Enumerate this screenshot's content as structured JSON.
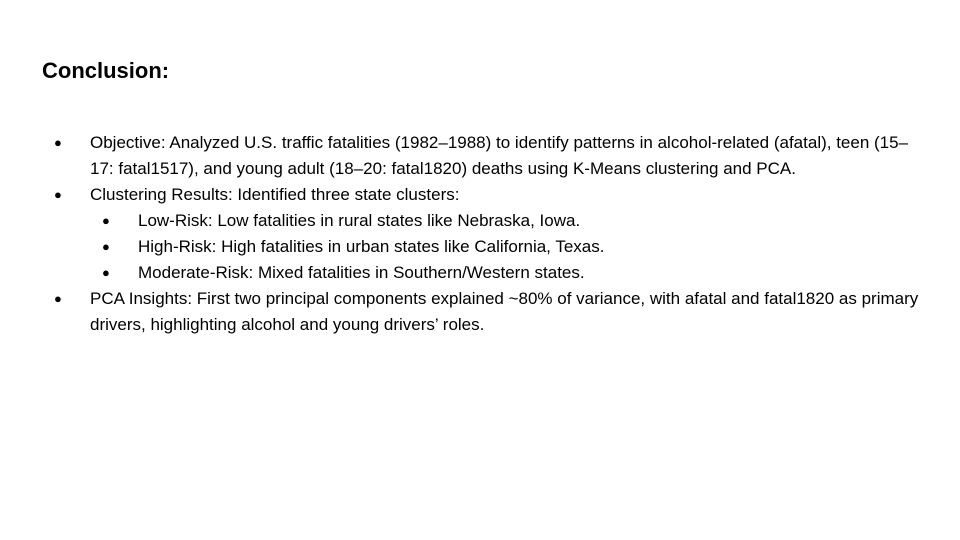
{
  "slide": {
    "title": "Conclusion:",
    "bullet_glyph": "●",
    "items": [
      {
        "level": 1,
        "text": "Objective: Analyzed U.S. traffic fatalities (1982–1988) to identify patterns in alcohol-related (afatal), teen (15–17: fatal1517), and young adult (18–20: fatal1820) deaths using K-Means clustering and PCA."
      },
      {
        "level": 1,
        "text": "Clustering Results: Identified three state clusters:"
      },
      {
        "level": 2,
        "text": "Low-Risk: Low fatalities in rural states like Nebraska, Iowa."
      },
      {
        "level": 2,
        "text": "High-Risk: High fatalities in urban states like California, Texas."
      },
      {
        "level": 2,
        "text": "Moderate-Risk: Mixed fatalities in Southern/Western states."
      },
      {
        "level": 1,
        "text": "PCA Insights: First two principal components explained ~80% of variance, with afatal and fatal1820 as primary drivers, highlighting alcohol and young drivers’ roles."
      }
    ]
  }
}
